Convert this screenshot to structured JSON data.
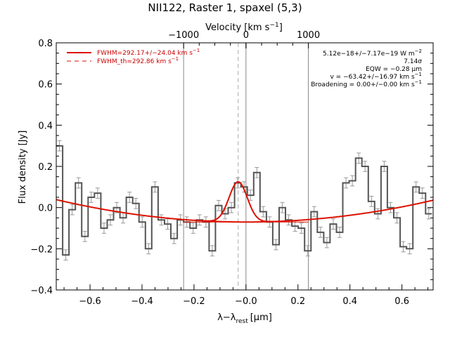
{
  "chart_data": {
    "type": "line",
    "title": "NII122, Raster 1, spaxel (5,3)",
    "xlabel": "λ−λ",
    "xlabel_sub": "rest",
    "xlabel_unit": "[μm]",
    "ylabel": "Flux density [Jy]",
    "top_axis_label": "Velocity [km s",
    "top_axis_label_sup": "−1",
    "top_axis_label_end": "]",
    "xlim": [
      -0.73,
      0.72
    ],
    "ylim": [
      -0.4,
      0.8
    ],
    "x_ticks": [
      {
        "value": -0.6,
        "label": "−0.6"
      },
      {
        "value": -0.4,
        "label": "−0.4"
      },
      {
        "value": -0.2,
        "label": "−0.2"
      },
      {
        "value": 0.0,
        "label": "−0.0"
      },
      {
        "value": 0.2,
        "label": "0.2"
      },
      {
        "value": 0.4,
        "label": "0.4"
      },
      {
        "value": 0.6,
        "label": "0.6"
      }
    ],
    "y_ticks": [
      {
        "value": -0.4,
        "label": "−0.4"
      },
      {
        "value": -0.2,
        "label": "−0.2"
      },
      {
        "value": 0.0,
        "label": "0.0"
      },
      {
        "value": 0.2,
        "label": "0.2"
      },
      {
        "value": 0.4,
        "label": "0.4"
      },
      {
        "value": 0.6,
        "label": "0.6"
      },
      {
        "value": 0.8,
        "label": "0.8"
      }
    ],
    "top_ticks": [
      {
        "value": -0.24,
        "label": "−1000"
      },
      {
        "value": 0.0,
        "label": "0"
      },
      {
        "value": 0.24,
        "label": "1000"
      }
    ],
    "vertical_lines_solid": [
      -0.24,
      0.0,
      0.24
    ],
    "vertical_line_dashed": -0.03,
    "spectrum": {
      "step_width": 0.0245,
      "x_start": -0.73,
      "y": [
        0.3,
        -0.23,
        -0.01,
        0.12,
        -0.14,
        0.05,
        0.07,
        -0.1,
        -0.06,
        0.0,
        -0.05,
        0.05,
        0.02,
        -0.07,
        -0.2,
        0.1,
        -0.06,
        -0.08,
        -0.15,
        -0.06,
        -0.07,
        -0.1,
        -0.06,
        -0.07,
        -0.21,
        0.01,
        -0.03,
        0.0,
        0.12,
        0.1,
        0.06,
        0.17,
        -0.02,
        -0.07,
        -0.18,
        0.0,
        -0.06,
        -0.09,
        -0.1,
        -0.21,
        -0.02,
        -0.12,
        -0.17,
        -0.08,
        -0.12,
        0.12,
        0.13,
        0.24,
        0.2,
        0.03,
        -0.03,
        0.2,
        0.0,
        -0.05,
        -0.19,
        -0.2,
        0.1,
        0.07,
        -0.03
      ],
      "error": 0.025,
      "color": "#555555",
      "error_color": "#999999"
    },
    "fit": {
      "color": "#dd1100",
      "baseline_center": 0.0,
      "baseline_a": 0.204,
      "baseline_c": -0.07,
      "gaussian_center": -0.03,
      "gaussian_sigma": 0.035,
      "gaussian_amplitude": 0.195
    },
    "legend": [
      {
        "label": "FWHM=292.17+/−24.04 km s",
        "sup": "−1",
        "style": "solid"
      },
      {
        "label": "FWHM_th=292.86 km s",
        "sup": "−1",
        "style": "dashed"
      }
    ],
    "annotations": [
      {
        "text": "5.12e−18+/−7.17e−19 W m",
        "sup": "−2"
      },
      {
        "text": "7.14σ",
        "sup": ""
      },
      {
        "text": "EQW = −0.28 μm",
        "sup": ""
      },
      {
        "text": "v = −63.42+/−16.97 km s",
        "sup": "−1"
      },
      {
        "text": "Broadening = 0.00+/−0.00 km s",
        "sup": "−1"
      }
    ]
  }
}
